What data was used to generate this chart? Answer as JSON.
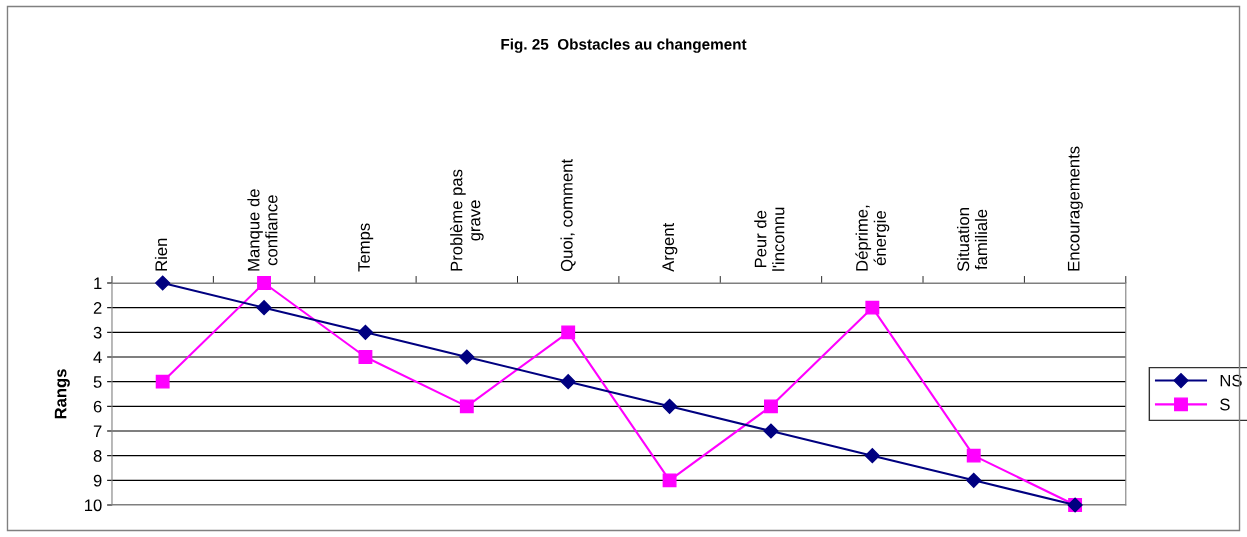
{
  "chart_data": {
    "type": "line",
    "title": "Fig. 25  Obstacles au changement",
    "ylabel": "Rangs",
    "categories": [
      "Rien",
      "Manque de\nconfiance",
      "Temps",
      "Problème pas\ngrave",
      "Quoi, comment",
      "Argent",
      "Peur de\nl'inconnu",
      "Déprime,\nénergie",
      "Situation\nfamiliale",
      "Encouragements"
    ],
    "series": [
      {
        "name": "NS",
        "color": "#000080",
        "marker": "diamond",
        "values": [
          1,
          2,
          3,
          4,
          5,
          6,
          7,
          8,
          9,
          10
        ]
      },
      {
        "name": "S",
        "color": "#ff00ff",
        "marker": "square",
        "values": [
          5,
          1,
          4,
          6,
          3,
          9,
          6,
          2,
          8,
          10
        ]
      }
    ],
    "ylim": [
      10,
      1
    ],
    "yticks": [
      1,
      2,
      3,
      4,
      5,
      6,
      7,
      8,
      9,
      10
    ],
    "grid": "y",
    "legend": "right",
    "line_style": "solid"
  }
}
